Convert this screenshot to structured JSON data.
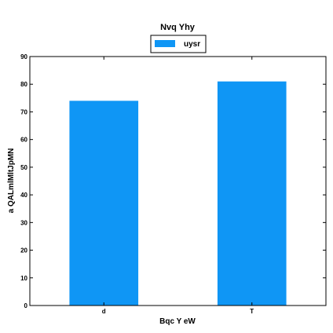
{
  "chart_data": {
    "type": "bar",
    "title": "Nvq Yhy",
    "xlabel": "Bqc Y eW",
    "ylabel": "a QALmlMltJpMN",
    "categories": [
      "d",
      "T"
    ],
    "series": [
      {
        "name": "uysr",
        "values": [
          74,
          81
        ],
        "color": "#0f96f5"
      }
    ],
    "ylim": [
      0,
      90
    ],
    "yticks": [
      0,
      10,
      20,
      30,
      40,
      50,
      60,
      70,
      80,
      90
    ],
    "grid": false,
    "legend_position": "top-center"
  }
}
